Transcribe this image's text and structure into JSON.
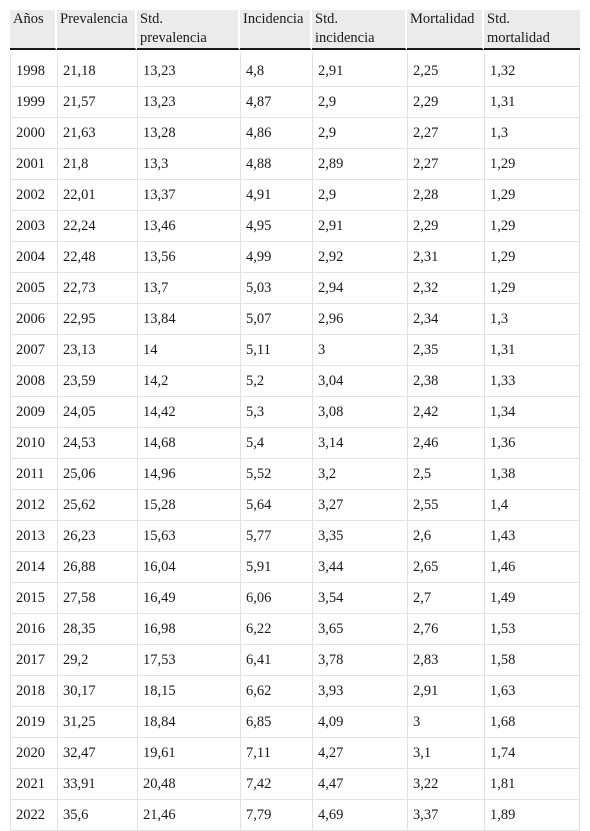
{
  "table": {
    "headers": [
      [
        "Años"
      ],
      [
        "Prevalencia"
      ],
      [
        "Std.",
        "prevalencia"
      ],
      [
        "Incidencia"
      ],
      [
        "Std.",
        "incidencia"
      ],
      [
        "Mortalidad"
      ],
      [
        "Std.",
        "mortalidad"
      ]
    ],
    "rows": [
      [
        "1998",
        "21,18",
        "13,23",
        "4,8",
        "2,91",
        "2,25",
        "1,32"
      ],
      [
        "1999",
        "21,57",
        "13,23",
        "4,87",
        "2,9",
        "2,29",
        "1,31"
      ],
      [
        "2000",
        "21,63",
        "13,28",
        "4,86",
        "2,9",
        "2,27",
        "1,3"
      ],
      [
        "2001",
        "21,8",
        "13,3",
        "4,88",
        "2,89",
        "2,27",
        "1,29"
      ],
      [
        "2002",
        "22,01",
        "13,37",
        "4,91",
        "2,9",
        "2,28",
        "1,29"
      ],
      [
        "2003",
        "22,24",
        "13,46",
        "4,95",
        "2,91",
        "2,29",
        "1,29"
      ],
      [
        "2004",
        "22,48",
        "13,56",
        "4,99",
        "2,92",
        "2,31",
        "1,29"
      ],
      [
        "2005",
        "22,73",
        "13,7",
        "5,03",
        "2,94",
        "2,32",
        "1,29"
      ],
      [
        "2006",
        "22,95",
        "13,84",
        "5,07",
        "2,96",
        "2,34",
        "1,3"
      ],
      [
        "2007",
        "23,13",
        "14",
        "5,11",
        "3",
        "2,35",
        "1,31"
      ],
      [
        "2008",
        "23,59",
        "14,2",
        "5,2",
        "3,04",
        "2,38",
        "1,33"
      ],
      [
        "2009",
        "24,05",
        "14,42",
        "5,3",
        "3,08",
        "2,42",
        "1,34"
      ],
      [
        "2010",
        "24,53",
        "14,68",
        "5,4",
        "3,14",
        "2,46",
        "1,36"
      ],
      [
        "2011",
        "25,06",
        "14,96",
        "5,52",
        "3,2",
        "2,5",
        "1,38"
      ],
      [
        "2012",
        "25,62",
        "15,28",
        "5,64",
        "3,27",
        "2,55",
        "1,4"
      ],
      [
        "2013",
        "26,23",
        "15,63",
        "5,77",
        "3,35",
        "2,6",
        "1,43"
      ],
      [
        "2014",
        "26,88",
        "16,04",
        "5,91",
        "3,44",
        "2,65",
        "1,46"
      ],
      [
        "2015",
        "27,58",
        "16,49",
        "6,06",
        "3,54",
        "2,7",
        "1,49"
      ],
      [
        "2016",
        "28,35",
        "16,98",
        "6,22",
        "3,65",
        "2,76",
        "1,53"
      ],
      [
        "2017",
        "29,2",
        "17,53",
        "6,41",
        "3,78",
        "2,83",
        "1,58"
      ],
      [
        "2018",
        "30,17",
        "18,15",
        "6,62",
        "3,93",
        "2,91",
        "1,63"
      ],
      [
        "2019",
        "31,25",
        "18,84",
        "6,85",
        "4,09",
        "3",
        "1,68"
      ],
      [
        "2020",
        "32,47",
        "19,61",
        "7,11",
        "4,27",
        "3,1",
        "1,74"
      ],
      [
        "2021",
        "33,91",
        "20,48",
        "7,42",
        "4,47",
        "3,22",
        "1,81"
      ],
      [
        "2022",
        "35,6",
        "21,46",
        "7,79",
        "4,69",
        "3,37",
        "1,89"
      ]
    ]
  }
}
